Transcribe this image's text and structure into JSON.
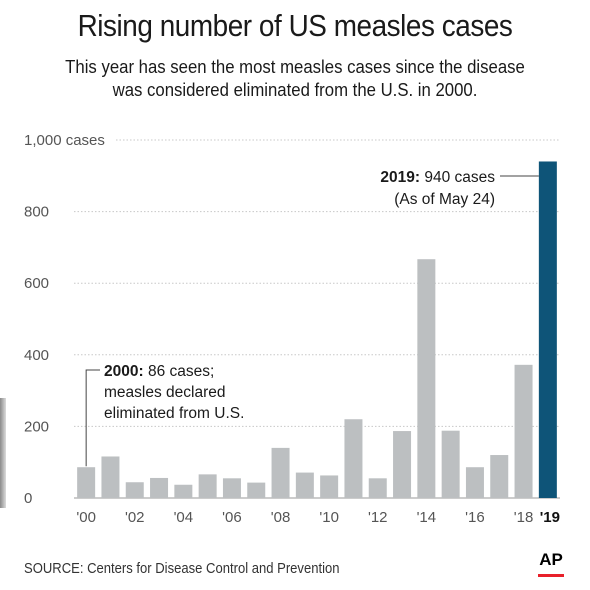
{
  "title": "Rising number of US measles cases",
  "subtitle_line1": "This year has seen the most measles cases since the disease",
  "subtitle_line2": "was considered eliminated from the U.S. in 2000.",
  "source": "SOURCE: Centers for Disease Control and Prevention",
  "logo_text": "AP",
  "colors": {
    "bar": "#bcbfc1",
    "highlight": "#0e5478",
    "grid": "#c8c8c8",
    "text": "#1a1a1a",
    "axis_text": "#555555",
    "ap_red": "#e8202a"
  },
  "chart_data": {
    "type": "bar",
    "categories": [
      "2000",
      "2001",
      "2002",
      "2003",
      "2004",
      "2005",
      "2006",
      "2007",
      "2008",
      "2009",
      "2010",
      "2011",
      "2012",
      "2013",
      "2014",
      "2015",
      "2016",
      "2017",
      "2018",
      "2019"
    ],
    "x_tick_labels": [
      "'00",
      "",
      "'02",
      "",
      "'04",
      "",
      "'06",
      "",
      "'08",
      "",
      "'10",
      "",
      "'12",
      "",
      "'14",
      "",
      "'16",
      "",
      "'18",
      "'19"
    ],
    "values": [
      86,
      116,
      44,
      56,
      37,
      66,
      55,
      43,
      140,
      71,
      63,
      220,
      55,
      187,
      667,
      188,
      86,
      120,
      372,
      940
    ],
    "highlight_index": 19,
    "ylim": [
      0,
      1000
    ],
    "y_ticks": [
      0,
      200,
      400,
      600,
      800,
      1000
    ],
    "y_tick_labels": [
      "0",
      "200",
      "400",
      "600",
      "800",
      "1,000 cases"
    ],
    "grid": true,
    "annotations": [
      {
        "bold": "2019:",
        "lines": [
          "940 cases",
          "(As of May 24)"
        ]
      },
      {
        "bold": "2000:",
        "lines": [
          "86 cases;",
          "measles declared",
          "eliminated from U.S."
        ]
      }
    ]
  }
}
